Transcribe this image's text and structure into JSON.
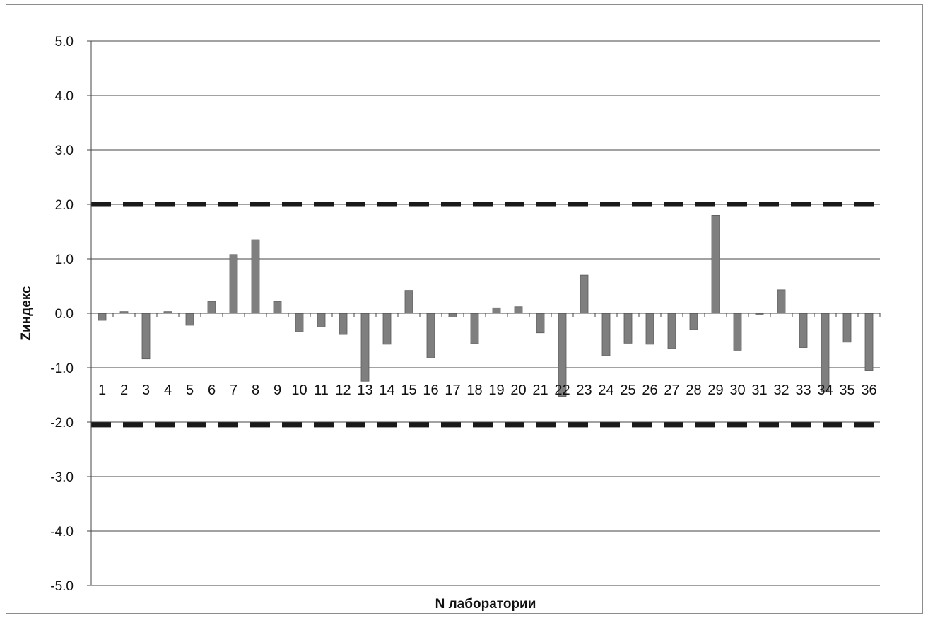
{
  "chart_data": {
    "type": "bar",
    "title": "",
    "xlabel": "N лаборатории",
    "ylabel": "Zиндекс",
    "ylim": [
      -5,
      5
    ],
    "yticks": [
      "5.0",
      "4.0",
      "3.0",
      "2.0",
      "1.0",
      "0.0",
      "-1.0",
      "-2.0",
      "-3.0",
      "-4.0",
      "-5.0"
    ],
    "grid": true,
    "legend": "none",
    "categories": [
      "1",
      "2",
      "3",
      "4",
      "5",
      "6",
      "7",
      "8",
      "9",
      "10",
      "11",
      "12",
      "13",
      "14",
      "15",
      "16",
      "17",
      "18",
      "19",
      "20",
      "21",
      "22",
      "23",
      "24",
      "25",
      "26",
      "27",
      "28",
      "29",
      "30",
      "31",
      "32",
      "33",
      "34",
      "35",
      "36"
    ],
    "values": [
      -0.13,
      0.03,
      -0.84,
      0.03,
      -0.22,
      0.22,
      1.08,
      1.35,
      0.22,
      -0.34,
      -0.25,
      -0.39,
      -1.25,
      -0.57,
      0.42,
      -0.82,
      -0.07,
      -0.56,
      0.1,
      0.12,
      -0.36,
      -1.53,
      0.7,
      -0.78,
      -0.55,
      -0.57,
      -0.65,
      -0.3,
      1.8,
      -0.68,
      -0.03,
      0.43,
      -0.63,
      -1.45,
      -0.53,
      -1.05
    ],
    "reference_lines": [
      {
        "value": 2.0,
        "style": "dashed"
      },
      {
        "value": -2.05,
        "style": "dashed"
      }
    ],
    "colors": {
      "bar": "#7f7f7f",
      "bar_edge": "#5a5a5a",
      "grid": "#444444",
      "reference": "#1a1a1a"
    }
  }
}
